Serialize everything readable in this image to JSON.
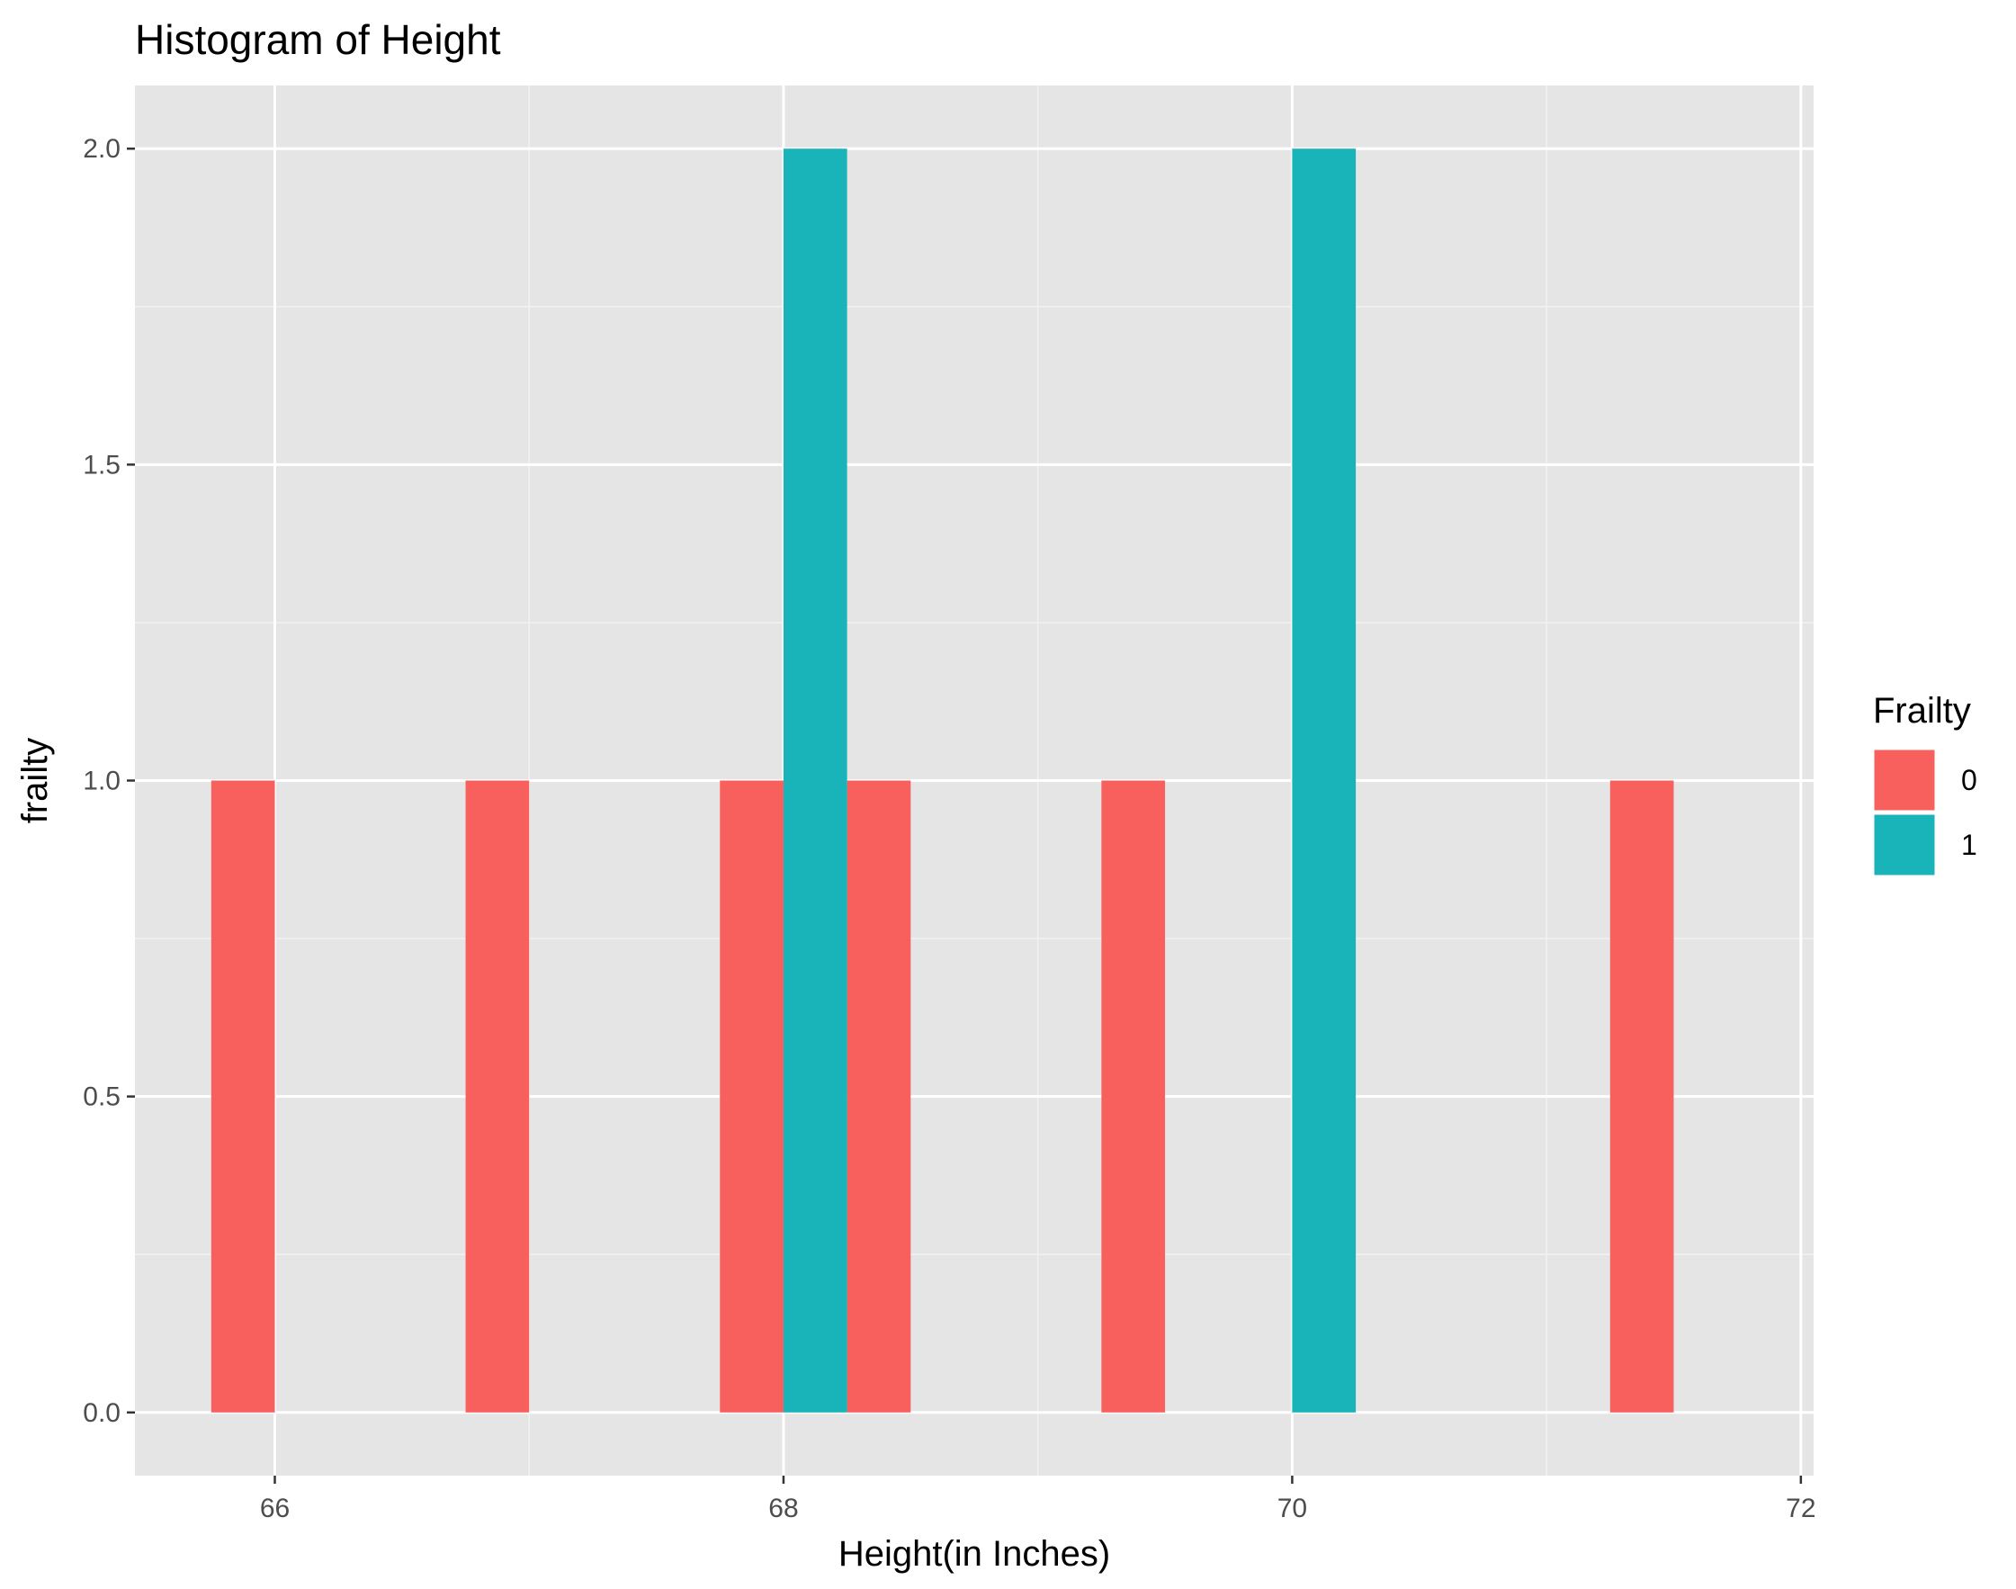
{
  "chart_data": {
    "type": "bar",
    "title": "Histogram of Height",
    "xlabel": "Height(in Inches)",
    "ylabel": "frailty",
    "xlim": [
      65.45,
      72.05
    ],
    "ylim": [
      -0.1,
      2.1
    ],
    "x_ticks": [
      66,
      68,
      70,
      72
    ],
    "y_ticks": [
      0.0,
      0.5,
      1.0,
      1.5,
      2.0
    ],
    "x_tick_labels": [
      "66",
      "68",
      "70",
      "72"
    ],
    "y_tick_labels": [
      "0.0",
      "0.5",
      "1.0",
      "1.5",
      "2.0"
    ],
    "grid": true,
    "panel_background": "#e5e5e5",
    "legend": {
      "title": "Frailty",
      "position": "right",
      "entries": [
        {
          "label": "0",
          "color": "#f8605e"
        },
        {
          "label": "1",
          "color": "#19b4b9"
        }
      ]
    },
    "series": [
      {
        "group": "0",
        "color": "#f8605e",
        "bars": [
          {
            "x0": 65.75,
            "x1": 66.0,
            "count": 1
          },
          {
            "x0": 66.75,
            "x1": 67.0,
            "count": 1
          },
          {
            "x0": 67.75,
            "x1": 68.0,
            "count": 1
          },
          {
            "x0": 68.25,
            "x1": 68.5,
            "count": 1
          },
          {
            "x0": 69.25,
            "x1": 69.5,
            "count": 1
          },
          {
            "x0": 71.25,
            "x1": 71.5,
            "count": 1
          }
        ]
      },
      {
        "group": "1",
        "color": "#19b4b9",
        "bars": [
          {
            "x0": 68.0,
            "x1": 68.25,
            "count": 2
          },
          {
            "x0": 70.0,
            "x1": 70.25,
            "count": 2
          }
        ]
      }
    ]
  }
}
